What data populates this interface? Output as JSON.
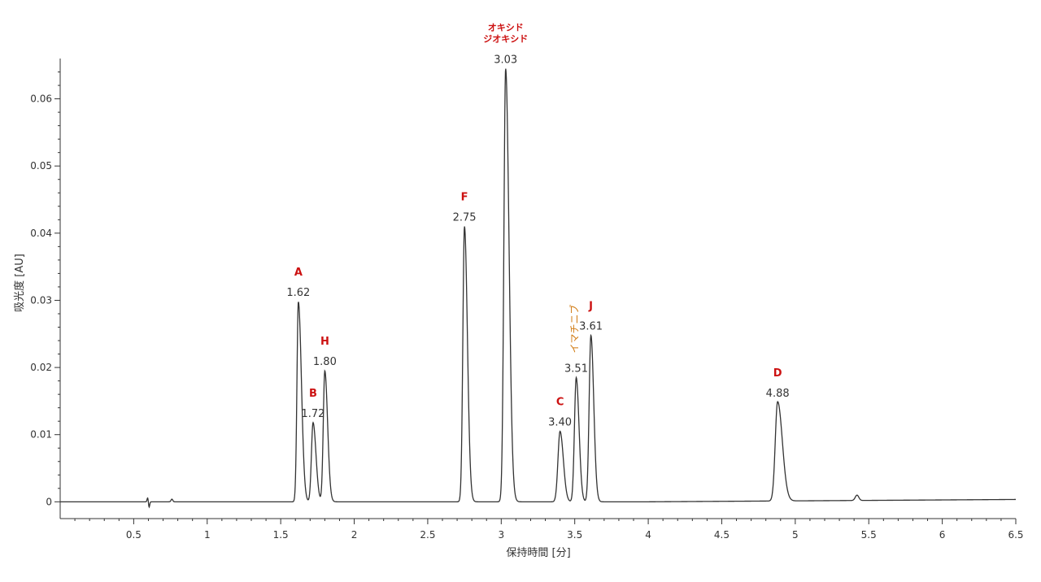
{
  "chart_data": {
    "type": "line",
    "xlabel": "保持時間 [分]",
    "ylabel": "吸光度 [AU]",
    "xlim": [
      0,
      6.5
    ],
    "ylim": [
      -0.0025,
      0.066
    ],
    "x_ticks": [
      "0.5",
      "1",
      "1.5",
      "2",
      "2.5",
      "3",
      "3.5",
      "4",
      "4.5",
      "5",
      "5.5",
      "6",
      "6.5"
    ],
    "y_ticks": [
      "0",
      "0.01",
      "0.02",
      "0.03",
      "0.04",
      "0.05",
      "0.06"
    ],
    "grid": false,
    "line_color": "#333333",
    "label_color": "#cc1111",
    "alt_label_color": "#d07a12",
    "peaks": [
      {
        "rt": 1.62,
        "rt_label": "1.62",
        "height": 0.0298,
        "width": 0.0095,
        "tail": 2.2,
        "name_lines": [
          "A"
        ],
        "style": "letter"
      },
      {
        "rt": 1.72,
        "rt_label": "1.72",
        "height": 0.0118,
        "width": 0.011,
        "tail": 1.8,
        "name_lines": [
          "B"
        ],
        "style": "letter"
      },
      {
        "rt": 1.8,
        "rt_label": "1.80",
        "height": 0.0195,
        "width": 0.0105,
        "tail": 1.8,
        "name_lines": [
          "H"
        ],
        "style": "letter"
      },
      {
        "rt": 2.75,
        "rt_label": "2.75",
        "height": 0.041,
        "width": 0.011,
        "tail": 1.8,
        "name_lines": [
          "F"
        ],
        "style": "letter"
      },
      {
        "rt": 3.03,
        "rt_label": "3.03",
        "height": 0.0645,
        "width": 0.012,
        "tail": 1.9,
        "name_lines": [
          "オキシド",
          "ジオキシド"
        ],
        "style": "kana"
      },
      {
        "rt": 3.4,
        "rt_label": "3.40",
        "height": 0.0105,
        "width": 0.014,
        "tail": 1.6,
        "name_lines": [
          "C"
        ],
        "style": "letter"
      },
      {
        "rt": 3.51,
        "rt_label": "3.51",
        "height": 0.0185,
        "width": 0.012,
        "tail": 1.6,
        "name_lines": [
          "イマチニブ"
        ],
        "style": "rotated"
      },
      {
        "rt": 3.61,
        "rt_label": "3.61",
        "height": 0.0248,
        "width": 0.012,
        "tail": 1.6,
        "name_lines": [
          "J"
        ],
        "style": "letter"
      },
      {
        "rt": 4.88,
        "rt_label": "4.88",
        "height": 0.0148,
        "width": 0.016,
        "tail": 2.0,
        "name_lines": [
          "D"
        ],
        "style": "letter"
      }
    ]
  }
}
